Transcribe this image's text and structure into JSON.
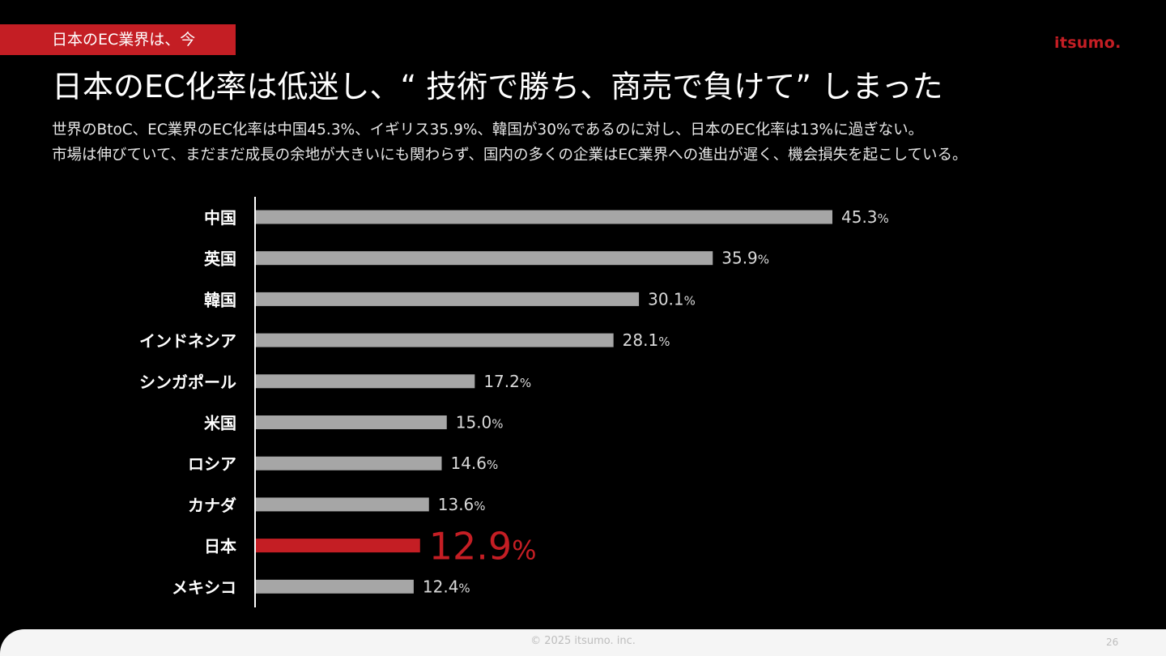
{
  "section_tag": "日本のEC業界は、今",
  "logo_text": "itsumo.",
  "headline": "日本のEC化率は低迷し、“ 技術で勝ち、商売で負けて” しまった",
  "description": [
    "世界のBtoC、EC業界のEC化率は中国45.3%、イギリス35.9%、韓国が30%であるのに対し、日本のEC化率は13%に過ぎない。",
    "市場は伸びていて、まだまだ成長の余地が大きいにも関わらず、国内の多くの企業はEC業界への進出が遅く、機会損失を起こしている。"
  ],
  "colors": {
    "background": "#000000",
    "accent": "#c41e24",
    "bar": "#a6a6a6",
    "axis": "#ffffff"
  },
  "chart_data": {
    "type": "bar",
    "orientation": "horizontal",
    "categories": [
      "中国",
      "英国",
      "韓国",
      "インドネシア",
      "シンガポール",
      "米国",
      "ロシア",
      "カナダ",
      "日本",
      "メキシコ"
    ],
    "values": [
      45.3,
      35.9,
      30.1,
      28.1,
      17.2,
      15.0,
      14.6,
      13.6,
      12.9,
      12.4
    ],
    "value_labels": [
      "45.3",
      "35.9",
      "30.1",
      "28.1",
      "17.2",
      "15.0",
      "14.6",
      "13.6",
      "12.9",
      "12.4"
    ],
    "unit": "%",
    "highlight_category": "日本",
    "title": "",
    "xlabel": "",
    "ylabel": "",
    "grid": false,
    "legend": "none"
  },
  "footer": {
    "copyright": "© 2025 itsumo. inc.",
    "page_number": "26"
  }
}
